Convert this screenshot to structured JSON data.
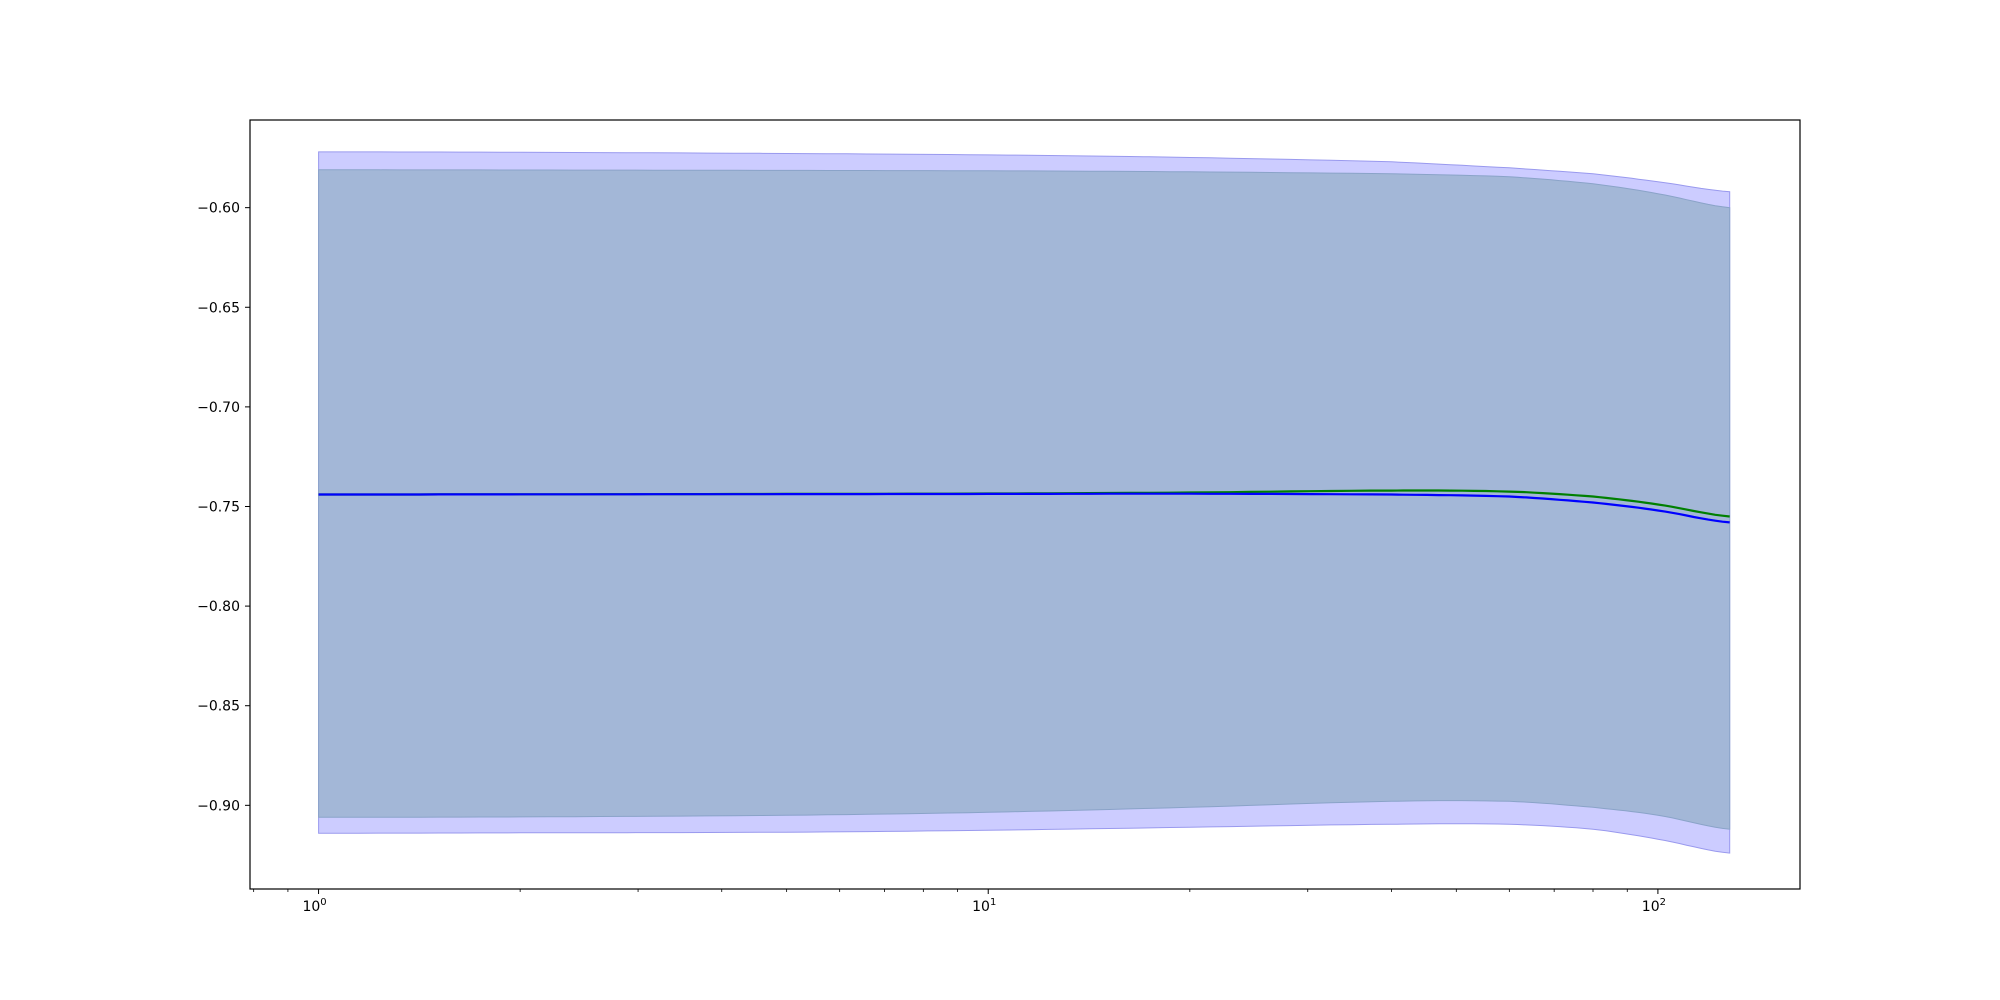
{
  "chart_data": {
    "type": "line",
    "title": "",
    "xlabel": "",
    "ylabel": "",
    "xscale": "log",
    "xlim": [
      0.79,
      163
    ],
    "ylim": [
      -0.942,
      -0.556
    ],
    "grid": false,
    "x_ticks": [
      {
        "value": 1,
        "base": "10",
        "exp": "0"
      },
      {
        "value": 10,
        "base": "10",
        "exp": "1"
      },
      {
        "value": 100,
        "base": "10",
        "exp": "2"
      }
    ],
    "y_ticks": [
      {
        "value": -0.6,
        "label": "−0.60"
      },
      {
        "value": -0.65,
        "label": "−0.65"
      },
      {
        "value": -0.7,
        "label": "−0.70"
      },
      {
        "value": -0.75,
        "label": "−0.75"
      },
      {
        "value": -0.8,
        "label": "−0.80"
      },
      {
        "value": -0.85,
        "label": "−0.85"
      },
      {
        "value": -0.9,
        "label": "−0.90"
      }
    ],
    "x": [
      1,
      2,
      5,
      10,
      20,
      40,
      60,
      80,
      100,
      128
    ],
    "bands": [
      {
        "color": "#ccccff",
        "edge": "#9999ee",
        "upper": [
          -0.572,
          -0.5722,
          -0.5728,
          -0.5735,
          -0.5748,
          -0.577,
          -0.58,
          -0.583,
          -0.587,
          -0.592
        ],
        "lower": [
          -0.914,
          -0.9138,
          -0.9135,
          -0.9125,
          -0.911,
          -0.9095,
          -0.9095,
          -0.912,
          -0.917,
          -0.924
        ]
      },
      {
        "color": "#a3b7d7",
        "edge": "#8aa3c8",
        "upper": [
          -0.581,
          -0.5811,
          -0.5813,
          -0.5815,
          -0.582,
          -0.583,
          -0.5845,
          -0.588,
          -0.593,
          -0.6
        ],
        "lower": [
          -0.906,
          -0.9058,
          -0.905,
          -0.9035,
          -0.901,
          -0.898,
          -0.898,
          -0.901,
          -0.905,
          -0.912
        ]
      }
    ],
    "series": [
      {
        "color": "#008000",
        "values": [
          -0.744,
          -0.7439,
          -0.7437,
          -0.7435,
          -0.743,
          -0.742,
          -0.7425,
          -0.745,
          -0.749,
          -0.755
        ]
      },
      {
        "color": "#0000ff",
        "values": [
          -0.744,
          -0.7439,
          -0.7438,
          -0.7437,
          -0.7436,
          -0.744,
          -0.745,
          -0.748,
          -0.752,
          -0.758
        ]
      }
    ]
  }
}
